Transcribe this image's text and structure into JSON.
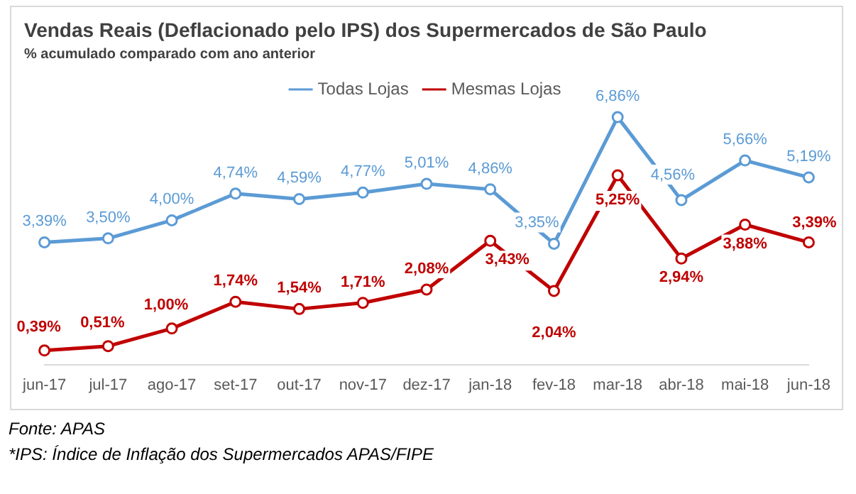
{
  "chart_data": {
    "type": "line",
    "title": "Vendas Reais (Deflacionado pelo IPS) dos Supermercados de São Paulo",
    "subtitle": "% acumulado  comparado  com ano anterior",
    "categories": [
      "jun-17",
      "jul-17",
      "ago-17",
      "set-17",
      "out-17",
      "nov-17",
      "dez-17",
      "jan-18",
      "fev-18",
      "mar-18",
      "abr-18",
      "mai-18",
      "jun-18"
    ],
    "series": [
      {
        "name": "Todas Lojas",
        "color": "#5b9bd5",
        "values": [
          3.39,
          3.5,
          4.0,
          4.74,
          4.59,
          4.77,
          5.01,
          4.86,
          3.35,
          6.86,
          4.56,
          5.66,
          5.19
        ],
        "value_labels": [
          "3,39%",
          "3,50%",
          "4,00%",
          "4,74%",
          "4,59%",
          "4,77%",
          "5,01%",
          "4,86%",
          "3,35%",
          "6,86%",
          "4,56%",
          "5,66%",
          "5,19%"
        ]
      },
      {
        "name": "Mesmas Lojas",
        "color": "#c00000",
        "values": [
          0.39,
          0.51,
          1.0,
          1.74,
          1.54,
          1.71,
          2.08,
          3.43,
          2.04,
          5.25,
          2.94,
          3.88,
          3.39
        ],
        "value_labels": [
          "0,39%",
          "0,51%",
          "1,00%",
          "1,74%",
          "1,54%",
          "1,71%",
          "2,08%",
          "3,43%",
          "2,04%",
          "5,25%",
          "2,94%",
          "3,88%",
          "3,39%"
        ]
      }
    ],
    "tick_labels": "x",
    "grid": false,
    "legend": "top",
    "marker": "circle",
    "line_style": "solid",
    "annotations": [
      "Fonte: APAS",
      "*IPS: Índice de Inflação dos Supermercados APAS/FIPE"
    ]
  }
}
